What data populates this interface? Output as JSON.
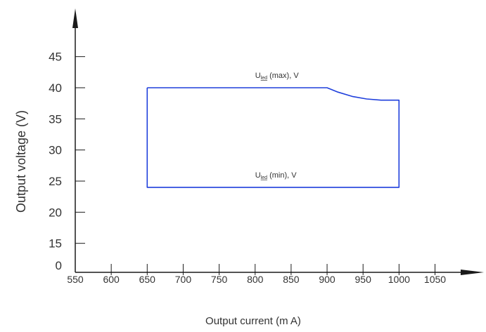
{
  "chart_data": {
    "type": "line",
    "title": "",
    "xlabel": "Output  current  (m A)",
    "ylabel": "Output voltage (V)",
    "x_ticks": [
      550,
      600,
      650,
      700,
      750,
      800,
      850,
      900,
      950,
      1000,
      1050
    ],
    "y_ticks": [
      0,
      15,
      20,
      25,
      30,
      35,
      40,
      45
    ],
    "xlim": [
      550,
      1100
    ],
    "ylim": [
      0,
      55
    ],
    "grid": false,
    "series": [
      {
        "name": "",
        "x": [
          650,
          900,
          915,
          935,
          955,
          975,
          1000,
          1000,
          650,
          650
        ],
        "y": [
          40,
          40,
          39.3,
          38.6,
          38.2,
          38.0,
          38.0,
          24,
          24,
          40
        ]
      }
    ],
    "annotations": [
      {
        "base": "U",
        "sub": "led",
        "tail": " (max), V",
        "x": 800,
        "y": 40
      },
      {
        "base": "U",
        "sub": "led",
        "tail": " (min), V",
        "x": 800,
        "y": 24
      }
    ],
    "line_color": "#1f3fdc",
    "axis_color": "#1a1a1a"
  }
}
